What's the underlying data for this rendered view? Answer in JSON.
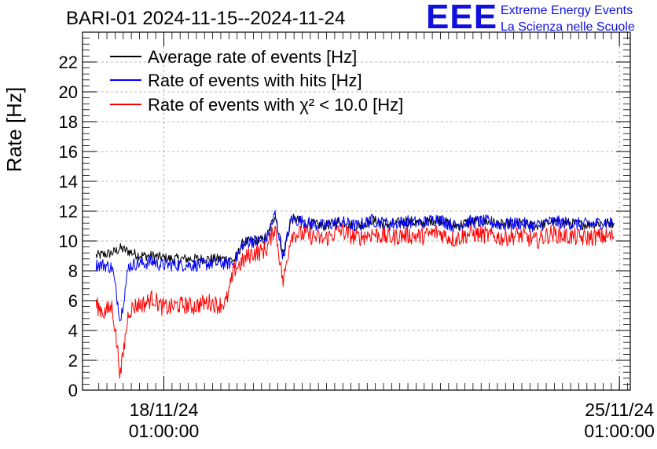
{
  "logo": {
    "mark": "EEE",
    "line1": "Extreme Energy Events",
    "line2": "La Scienza nelle Scuole"
  },
  "colors": {
    "average": "#000000",
    "hits": "#0000ff",
    "chi2": "#ff0000",
    "logo": "#1010e0",
    "grid": "#a0a0a0"
  },
  "chart_data": {
    "type": "line",
    "title": "BARI-01 2024-11-15--2024-11-24",
    "ylabel": "Rate [Hz]",
    "xlabel": "",
    "ylim": [
      0,
      24
    ],
    "yticks": [
      0,
      2,
      4,
      6,
      8,
      10,
      12,
      14,
      16,
      18,
      20,
      22
    ],
    "xlim": [
      "2024-11-16 19:00",
      "2024-11-25 05:00"
    ],
    "xticks": [
      {
        "time": "2024-11-18 01:00",
        "label1": "18/11/24",
        "label2": "01:00:00"
      },
      {
        "time": "2024-11-25 01:00",
        "label1": "25/11/24",
        "label2": "01:00:00"
      }
    ],
    "grid": true,
    "legend_position": "top-left",
    "x": [
      "2024-11-17 00:00",
      "2024-11-17 03:00",
      "2024-11-17 06:00",
      "2024-11-17 09:00",
      "2024-11-17 12:00",
      "2024-11-17 15:00",
      "2024-11-17 18:00",
      "2024-11-17 21:00",
      "2024-11-18 00:00",
      "2024-11-18 03:00",
      "2024-11-18 06:00",
      "2024-11-18 09:00",
      "2024-11-18 12:00",
      "2024-11-18 15:00",
      "2024-11-18 18:00",
      "2024-11-18 21:00",
      "2024-11-19 00:00",
      "2024-11-19 03:00",
      "2024-11-19 06:00",
      "2024-11-19 07:30",
      "2024-11-19 09:00",
      "2024-11-19 10:00",
      "2024-11-19 12:00",
      "2024-11-19 15:00",
      "2024-11-19 18:00",
      "2024-11-19 21:00",
      "2024-11-20 00:00",
      "2024-11-20 06:00",
      "2024-11-20 12:00",
      "2024-11-20 18:00",
      "2024-11-21 00:00",
      "2024-11-21 06:00",
      "2024-11-21 12:00",
      "2024-11-21 18:00",
      "2024-11-22 00:00",
      "2024-11-22 06:00",
      "2024-11-22 12:00",
      "2024-11-22 18:00",
      "2024-11-23 00:00",
      "2024-11-23 06:00",
      "2024-11-23 12:00",
      "2024-11-23 18:00",
      "2024-11-24 00:00",
      "2024-11-24 06:00",
      "2024-11-24 12:00",
      "2024-11-24 18:00",
      "2024-11-24 23:00"
    ],
    "series": [
      {
        "name": "Average rate of events [Hz]",
        "values": [
          9.0,
          9.1,
          9.2,
          9.5,
          9.3,
          9.1,
          9.0,
          9.0,
          8.9,
          8.8,
          8.8,
          8.8,
          8.8,
          8.8,
          8.8,
          8.8,
          8.8,
          8.7,
          9.8,
          9.9,
          10.0,
          10.0,
          10.0,
          10.2,
          11.8,
          9.0,
          11.5,
          11.2,
          11.0,
          11.3,
          11.0,
          11.4,
          11.1,
          11.3,
          11.2,
          11.5,
          11.0,
          11.3,
          11.3,
          11.1,
          11.2,
          11.0,
          11.3,
          11.2,
          11.1,
          11.2,
          11.2
        ]
      },
      {
        "name": "Rate of events with hits [Hz]",
        "values": [
          8.4,
          8.4,
          8.2,
          4.7,
          8.3,
          8.5,
          8.5,
          8.6,
          8.4,
          8.4,
          8.4,
          8.4,
          8.4,
          8.4,
          8.5,
          8.5,
          8.5,
          8.5,
          9.8,
          9.9,
          10.0,
          10.0,
          10.0,
          10.2,
          11.8,
          9.0,
          11.5,
          11.2,
          11.0,
          11.3,
          11.0,
          11.4,
          11.1,
          11.3,
          11.2,
          11.5,
          11.0,
          11.3,
          11.3,
          11.1,
          11.2,
          11.0,
          11.3,
          11.2,
          11.1,
          11.2,
          11.2
        ]
      },
      {
        "name": "Rate of events with χ² < 10.0 [Hz]",
        "values": [
          5.7,
          5.2,
          5.6,
          1.0,
          5.3,
          5.7,
          5.8,
          6.2,
          5.6,
          5.5,
          5.7,
          5.7,
          5.6,
          5.8,
          5.9,
          5.7,
          5.9,
          8.1,
          8.6,
          8.9,
          9.1,
          9.2,
          9.2,
          9.5,
          11.0,
          7.2,
          10.5,
          10.4,
          10.1,
          10.7,
          10.2,
          10.5,
          10.2,
          10.4,
          10.3,
          10.6,
          10.1,
          10.5,
          10.4,
          10.2,
          10.4,
          10.0,
          10.5,
          10.3,
          10.2,
          10.3,
          10.3
        ]
      }
    ]
  }
}
